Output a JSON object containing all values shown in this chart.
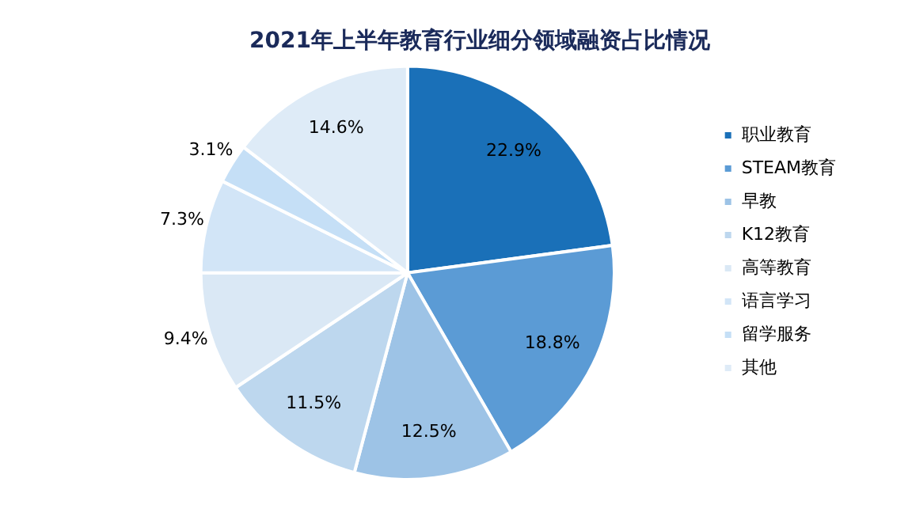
{
  "chart_data": {
    "type": "pie",
    "title": "2021年上半年教育行业细分领域融资占比情况",
    "categories": [
      "职业教育",
      "STEAM教育",
      "早教",
      "K12教育",
      "高等教育",
      "语言学习",
      "留学服务",
      "其他"
    ],
    "values": [
      22.9,
      18.8,
      12.5,
      11.5,
      9.4,
      7.3,
      3.1,
      14.6
    ],
    "colors": [
      "#1a70b8",
      "#5b9bd5",
      "#9dc3e6",
      "#bdd7ee",
      "#dae8f5",
      "#d2e5f7",
      "#c5dff6",
      "#deebf7"
    ],
    "value_labels": [
      "22.9%",
      "18.8%",
      "12.5%",
      "11.5%",
      "9.4%",
      "7.3%",
      "3.1%",
      "14.6%"
    ],
    "legend": "right"
  }
}
